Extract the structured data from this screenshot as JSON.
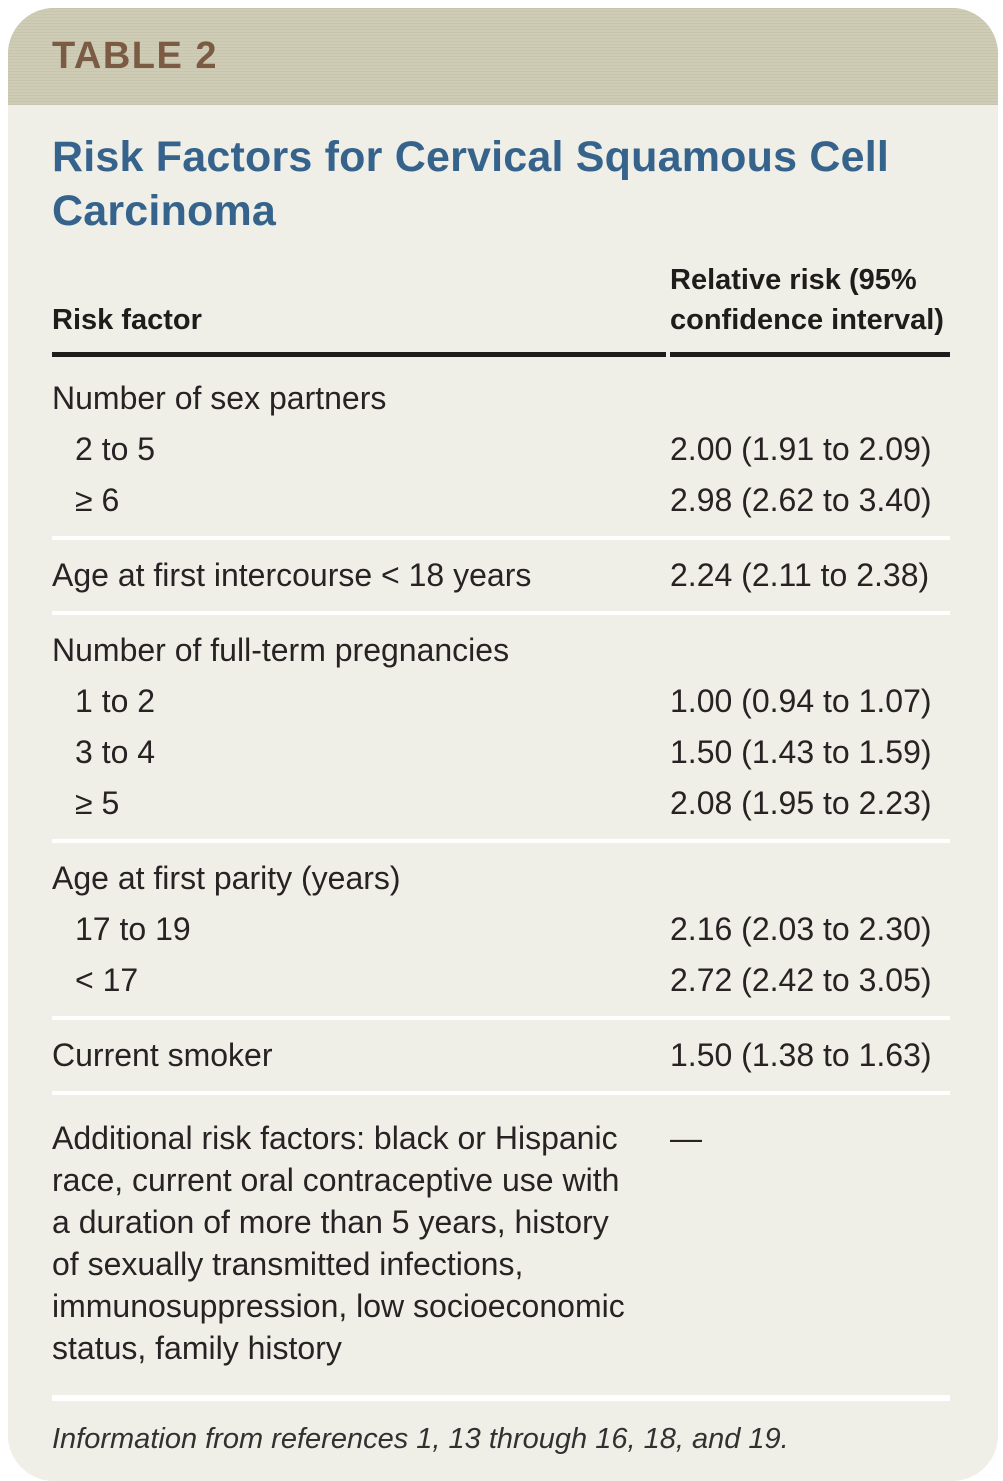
{
  "card": {
    "table_label": "TABLE 2",
    "title": "Risk Factors for Cervical Squamous Cell Carcinoma",
    "columns": {
      "risk_factor": "Risk factor",
      "relative_risk": "Relative risk (95% confidence interval)"
    },
    "groups": [
      {
        "rows": [
          {
            "label": "Number of sex partners",
            "value": ""
          },
          {
            "label": "2 to 5",
            "value": "2.00 (1.91 to 2.09)"
          },
          {
            "label": "≥ 6",
            "value": "2.98 (2.62 to 3.40)"
          }
        ]
      },
      {
        "rows": [
          {
            "label": "Age at first intercourse < 18 years",
            "value": "2.24 (2.11 to 2.38)"
          }
        ]
      },
      {
        "rows": [
          {
            "label": "Number of full-term pregnancies",
            "value": ""
          },
          {
            "label": "1 to 2",
            "value": "1.00 (0.94 to 1.07)"
          },
          {
            "label": "3 to 4",
            "value": "1.50 (1.43 to 1.59)"
          },
          {
            "label": "≥ 5",
            "value": "2.08 (1.95 to 2.23)"
          }
        ]
      },
      {
        "rows": [
          {
            "label": "Age at first parity (years)",
            "value": ""
          },
          {
            "label": "17 to 19",
            "value": "2.16 (2.03 to 2.30)"
          },
          {
            "label": "< 17",
            "value": "2.72 (2.42 to 3.05)"
          }
        ]
      },
      {
        "rows": [
          {
            "label": "Current smoker",
            "value": "1.50 (1.38 to 1.63)"
          }
        ]
      },
      {
        "rows": [
          {
            "label": "Additional risk factors: black or Hispanic race, current oral contraceptive use with a duration of more than 5 years, history of sexually transmitted infections, immunosuppression, low socioeconomic status, family history",
            "value": "—"
          }
        ]
      }
    ],
    "footnote": "Information from references 1, 13 through 16, 18, and 19.",
    "colors": {
      "header_band_bg": "#cbc9b2",
      "table_label_brown": "#7b5b44",
      "body_bg": "#efeee7",
      "title_blue": "#35638c",
      "text_black": "#272324",
      "header_rule_black": "#1f1c1c",
      "row_separator_white": "#ffffff"
    }
  }
}
